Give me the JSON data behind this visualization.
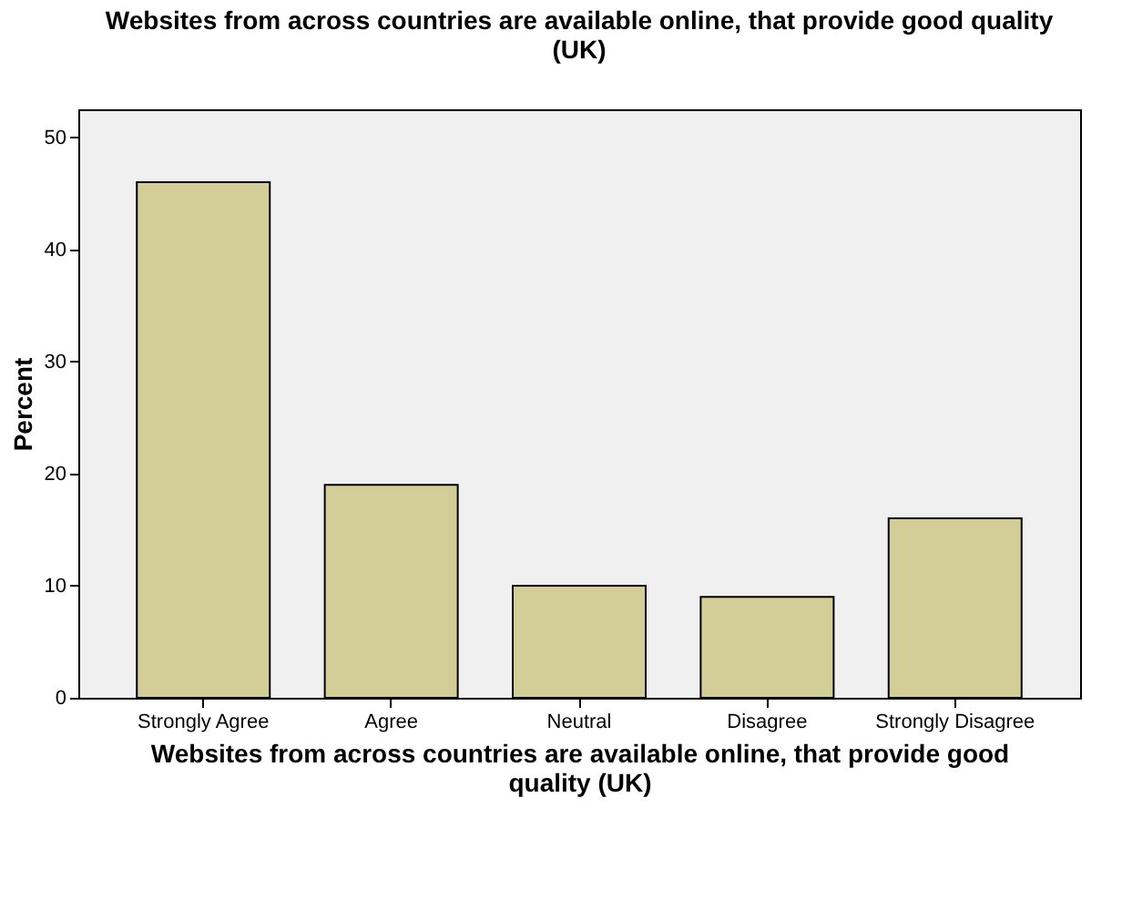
{
  "chart_data": {
    "type": "bar",
    "title": "Websites from across countries are available online, that provide good quality (UK)",
    "xlabel": "Websites from across countries are available online, that provide good quality (UK)",
    "ylabel": "Percent",
    "categories": [
      "Strongly Agree",
      "Agree",
      "Neutral",
      "Disagree",
      "Strongly Disagree"
    ],
    "values": [
      46,
      19,
      10,
      9,
      16
    ],
    "color": "#d3ce97",
    "ylim": [
      0,
      52.5
    ],
    "yticks": [
      0,
      10,
      20,
      30,
      40,
      50
    ],
    "grid": false
  }
}
